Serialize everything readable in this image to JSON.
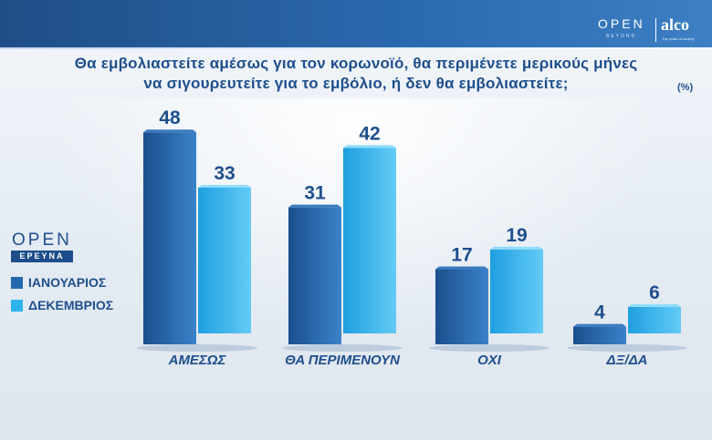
{
  "header": {
    "open_logo": "OPEN",
    "open_sub": "BEYOND",
    "alco_logo": "alco",
    "alco_tagline": "The pulse of society"
  },
  "question": {
    "line1": "Θα εμβολιαστείτε αμέσως για τον κορωνοϊό, θα περιμένετε μερικούς μήνες",
    "line2": "να σιγουρευτείτε για το εμβόλιο, ή δεν θα εμβολιαστείτε;",
    "unit": "(%)"
  },
  "side_logo": {
    "open": "OPEN",
    "erevna": "ΕΡΕΥΝΑ"
  },
  "colors": {
    "header_bg": "#2a68ad",
    "text_primary": "#1e4f8c",
    "series_dark": "#2367ad",
    "series_light": "#2fb3ee"
  },
  "chart_data": {
    "type": "bar",
    "title": "",
    "xlabel": "",
    "ylabel": "",
    "ylim": [
      0,
      50
    ],
    "grid": false,
    "legend_position": "left",
    "categories": [
      "ΑΜΕΣΩΣ",
      "ΘΑ ΠΕΡΙΜΕΝΟΥΝ",
      "ΟΧΙ",
      "ΔΞ/ΔΑ"
    ],
    "series": [
      {
        "name": "ΙΑΝΟΥΑΡΙΟΣ",
        "color": "#2367ad",
        "values": [
          48,
          31,
          17,
          4
        ]
      },
      {
        "name": "ΔΕΚΕΜΒΡΙΟΣ",
        "color": "#2fb3ee",
        "values": [
          33,
          42,
          19,
          6
        ]
      }
    ]
  }
}
